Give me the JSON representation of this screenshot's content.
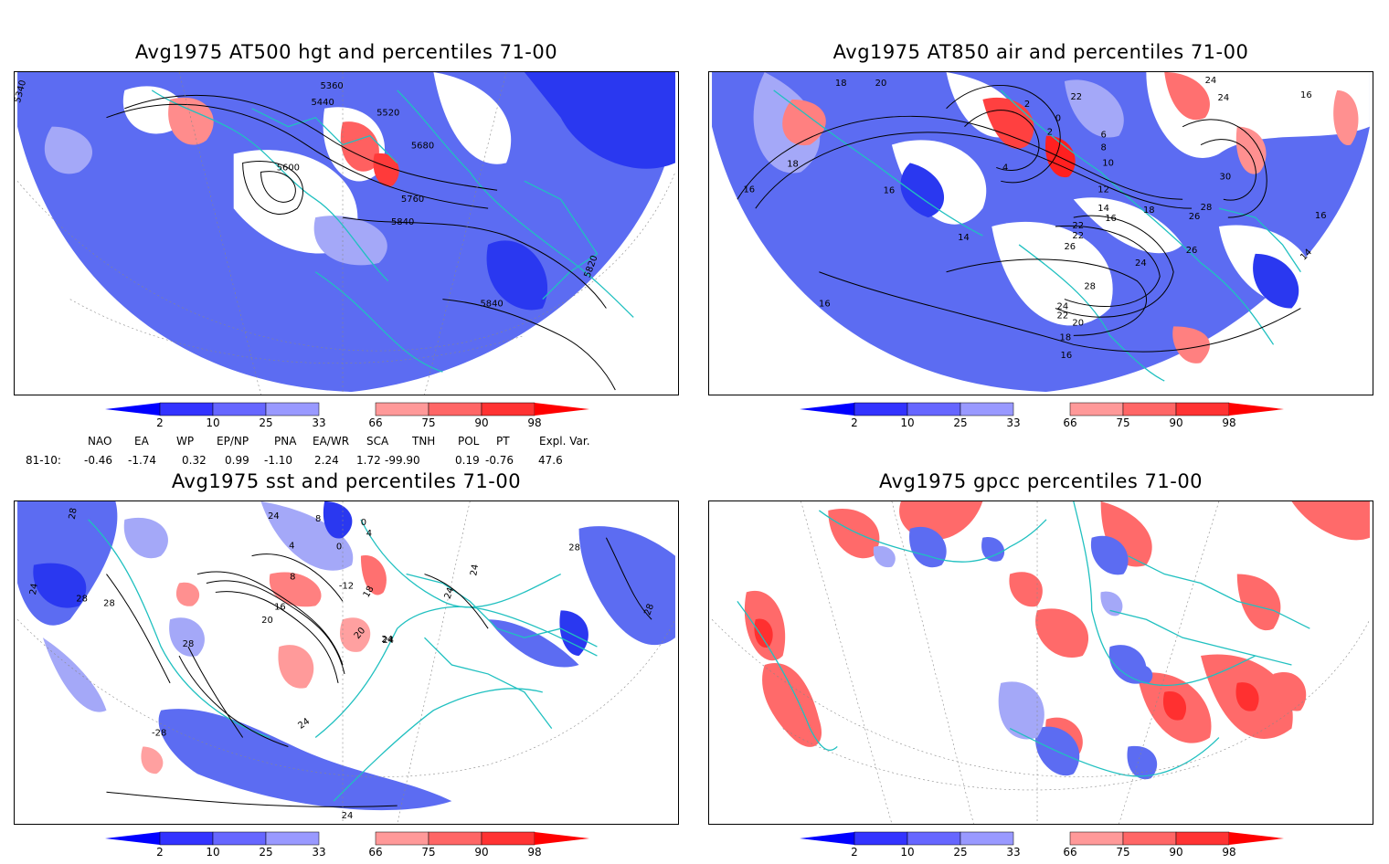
{
  "panels": [
    {
      "id": "hgt",
      "title": "Avg1975 AT500 hgt and percentiles 71-00",
      "contour_labels": [
        "5340",
        "5360",
        "5440",
        "5520",
        "5600",
        "5680",
        "5760",
        "5840",
        "5820",
        "5840"
      ]
    },
    {
      "id": "air",
      "title": "Avg1975 AT850 air and percentiles 71-00",
      "contour_labels": [
        "18",
        "20",
        "22",
        "24",
        "24",
        "16",
        "2",
        "0",
        "2",
        "6",
        "8",
        "4",
        "10",
        "12",
        "14",
        "16",
        "18",
        "30",
        "28",
        "26",
        "16",
        "16",
        "14",
        "22",
        "22",
        "26",
        "24",
        "26",
        "28",
        "24",
        "22",
        "20",
        "18",
        "16",
        "16",
        "18",
        "14",
        "16"
      ]
    },
    {
      "id": "sst",
      "title": "Avg1975 sst and percentiles 71-00",
      "contour_labels": [
        "28",
        "24",
        "28",
        "28",
        "24",
        "8",
        "4",
        "0",
        "0",
        "4",
        "-12",
        "18",
        "8",
        "16",
        "20",
        "20",
        "24",
        "28",
        "24",
        "28",
        "24",
        "-28",
        "24",
        "28",
        "24",
        "24"
      ]
    },
    {
      "id": "gpcc",
      "title": "Avg1975 gpcc percentiles 71-00",
      "contour_labels": []
    }
  ],
  "colorbar": {
    "labels": [
      "2",
      "10",
      "25",
      "33",
      "66",
      "75",
      "90",
      "98"
    ],
    "colors": [
      "#0000ff",
      "#3333ff",
      "#6666ff",
      "#9999ff",
      "#ffffff",
      "#ff9999",
      "#ff6666",
      "#ff3333",
      "#ff0000"
    ]
  },
  "indices": {
    "headers": [
      "NAO",
      "EA",
      "WP",
      "EP/NP",
      "PNA",
      "EA/WR",
      "SCA",
      "TNH",
      "POL",
      "PT",
      "Expl. Var."
    ],
    "row_label": "81-10:",
    "values": [
      "-0.46",
      "-1.74",
      "0.32",
      "0.99",
      "-1.10",
      "2.24",
      "1.72",
      "-99.90",
      "0.19",
      "-0.76",
      "47.6"
    ]
  },
  "colors": {
    "coast": "#20c0c0",
    "contour": "#000000",
    "blue": "#5c6cf2",
    "light_blue": "#a4a8f8",
    "red": "#ff5a5a",
    "light_red": "#ffb0b0"
  }
}
